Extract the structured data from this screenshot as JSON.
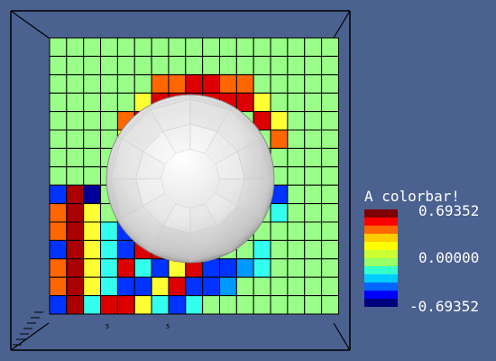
{
  "colorbar": {
    "title": "A colorbar!",
    "max_label": "0.69352",
    "mid_label": "0.00000",
    "min_label": "-0.69352",
    "colors": [
      "#00007f",
      "#0000ff",
      "#0066ff",
      "#00ccff",
      "#33ffcc",
      "#99ff66",
      "#ccff33",
      "#ffff00",
      "#ffcc00",
      "#ff6600",
      "#ff0000",
      "#7f0000"
    ]
  },
  "palette": {
    "background": "#4b6190",
    "grid_line": "#000000",
    "box_line": "#000000",
    "green": "#99ff88",
    "yellow": "#ffff33",
    "orange": "#ff6600",
    "red": "#dd0000",
    "dark_red": "#aa0000",
    "blue": "#0033ff",
    "dark_blue": "#000099",
    "cyan": "#33ffee",
    "light_blue": "#0099ff",
    "sphere_light": "#f4f4f4",
    "sphere_dark": "#a8a8a8"
  },
  "grid": {
    "rows": [
      "GGGGGGGGGGGGGGGGG",
      "GGGGGGGGGGGGGGGGG",
      "GGGGGGOORROOGGGGG",
      "GGGGGYRRRRRRYGGGG",
      "GGGGOR......RYGGG",
      "GGGGY........OGGG",
      "GGGGG........GGGG",
      "GGGGG........GGGG",
      "BKDGG........BGGG",
      "OKYGG........CGGG",
      "OKYCB........GGGG",
      "BKYCBRR.....CGGGG",
      "OKYCRCBYRBBLCGGGG",
      "OKYCBBYRBBLGGGGGG",
      "BKCRRYCBCGGGGGGGG"
    ]
  },
  "axis_labels": {
    "tick_a": "5",
    "tick_b": "5"
  }
}
